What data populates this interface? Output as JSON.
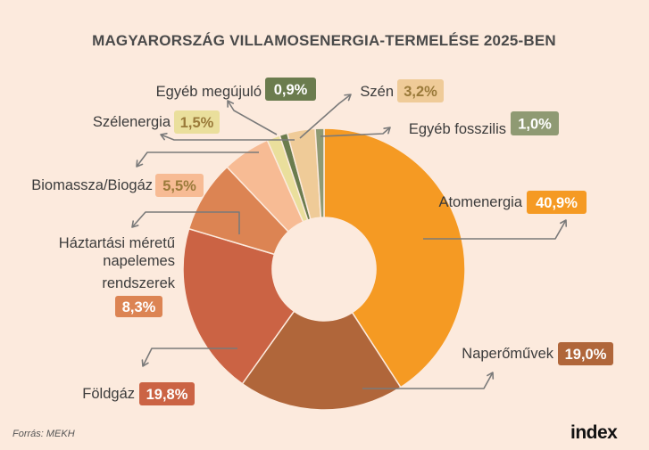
{
  "chart_data": {
    "type": "pie",
    "title": "MAGYARORSZÁG VILLAMOSENERGIA-TERMELÉSE 2025-BEN",
    "unit": "%",
    "slices": [
      {
        "label": "Atomenergia",
        "value": 40.9,
        "display": "40,9%",
        "color": "#F59A23"
      },
      {
        "label": "Naperőművek",
        "value": 19.0,
        "display": "19,0%",
        "color": "#B0663A"
      },
      {
        "label": "Földgáz",
        "value": 19.8,
        "display": "19,8%",
        "color": "#CB6344"
      },
      {
        "label": "Háztartási méretű napelemes rendszerek",
        "label_lines": [
          "Háztartási méretű",
          "napelemes",
          "rendszerek"
        ],
        "value": 8.3,
        "display": "8,3%",
        "color": "#DC8453"
      },
      {
        "label": "Biomassza/Biogáz",
        "value": 5.5,
        "display": "5,5%",
        "color": "#F7BB94"
      },
      {
        "label": "Szélenergia",
        "value": 1.5,
        "display": "1,5%",
        "color": "#EADF9C"
      },
      {
        "label": "Egyéb megújuló",
        "value": 0.9,
        "display": "0,9%",
        "color": "#6B7C4E"
      },
      {
        "label": "Szén",
        "value": 3.2,
        "display": "3,2%",
        "color": "#EFCB98"
      },
      {
        "label": "Egyéb fosszilis",
        "value": 1.0,
        "display": "1,0%",
        "color": "#8F9A73"
      }
    ]
  },
  "source": "Forrás: MEKH",
  "logo": "index"
}
